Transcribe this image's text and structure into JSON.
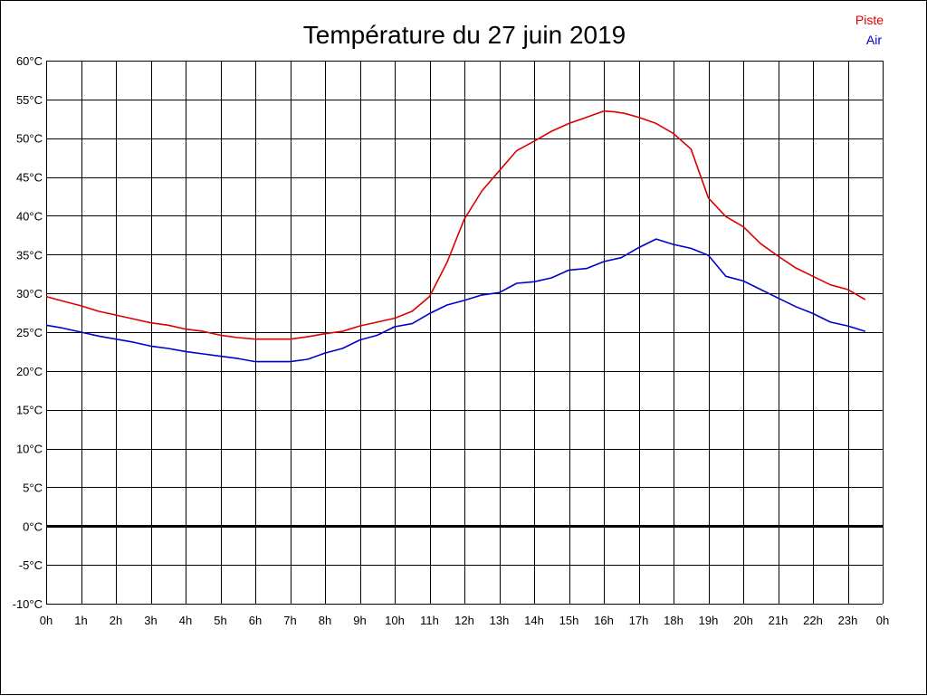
{
  "chart_data": {
    "type": "line",
    "title": "Température du 27 juin 2019",
    "xlabel": "",
    "ylabel": "",
    "x_tick_labels": [
      "0h",
      "1h",
      "2h",
      "3h",
      "4h",
      "5h",
      "6h",
      "7h",
      "8h",
      "9h",
      "10h",
      "11h",
      "12h",
      "13h",
      "14h",
      "15h",
      "16h",
      "17h",
      "18h",
      "19h",
      "20h",
      "21h",
      "22h",
      "23h",
      "0h"
    ],
    "y_tick_labels": [
      "-10°C",
      "-5°C",
      "0°C",
      "5°C",
      "10°C",
      "15°C",
      "20°C",
      "25°C",
      "30°C",
      "35°C",
      "40°C",
      "45°C",
      "50°C",
      "55°C",
      "60°C"
    ],
    "xlim": [
      0,
      24
    ],
    "ylim": [
      -10,
      60
    ],
    "grid": true,
    "legend_position": "top-right",
    "series": [
      {
        "name": "Piste",
        "color": "#dd0000",
        "x": [
          0,
          0.4,
          1,
          1.5,
          2,
          2.5,
          3,
          3.5,
          4,
          4.5,
          5,
          5.5,
          6,
          6.5,
          7,
          7.5,
          8,
          8.5,
          9,
          9.5,
          10,
          10.5,
          11,
          11.5,
          12,
          12.5,
          13,
          13.5,
          14,
          14.5,
          15,
          15.5,
          16,
          16.3,
          16.6,
          17,
          17.5,
          18,
          18.5,
          19,
          19.5,
          20,
          20.5,
          21,
          21.5,
          22,
          22.5,
          23,
          23.5
        ],
        "y": [
          29.6,
          29.1,
          28.4,
          27.7,
          27.2,
          26.7,
          26.2,
          25.9,
          25.4,
          25.1,
          24.6,
          24.3,
          24.1,
          24.1,
          24.1,
          24.4,
          24.8,
          25.1,
          25.8,
          26.3,
          26.8,
          27.7,
          29.6,
          34.0,
          39.6,
          43.2,
          45.8,
          48.4,
          49.6,
          50.9,
          51.9,
          52.7,
          53.5,
          53.4,
          53.2,
          52.7,
          51.9,
          50.6,
          48.6,
          42.3,
          39.9,
          38.6,
          36.4,
          34.8,
          33.3,
          32.2,
          31.1,
          30.5,
          29.2
        ]
      },
      {
        "name": "Air",
        "color": "#0000cc",
        "x": [
          0,
          0.4,
          1,
          1.5,
          2,
          2.5,
          3,
          3.5,
          4,
          4.5,
          5,
          5.5,
          6,
          6.5,
          7,
          7.5,
          8,
          8.5,
          9,
          9.5,
          10,
          10.5,
          11,
          11.5,
          12,
          12.5,
          13,
          13.5,
          14,
          14.5,
          15,
          15.5,
          16,
          16.5,
          17,
          17.5,
          18,
          18.5,
          19,
          19.5,
          20,
          20.5,
          21,
          21.5,
          22,
          22.5,
          23,
          23.5
        ],
        "y": [
          25.9,
          25.6,
          25.0,
          24.5,
          24.1,
          23.7,
          23.2,
          22.9,
          22.5,
          22.2,
          21.9,
          21.6,
          21.2,
          21.2,
          21.2,
          21.5,
          22.3,
          22.9,
          24.0,
          24.6,
          25.7,
          26.1,
          27.4,
          28.5,
          29.1,
          29.8,
          30.1,
          31.3,
          31.5,
          32.0,
          33.0,
          33.2,
          34.1,
          34.6,
          35.9,
          37.0,
          36.3,
          35.8,
          34.9,
          32.2,
          31.6,
          30.5,
          29.4,
          28.3,
          27.4,
          26.3,
          25.8,
          25.1
        ]
      }
    ]
  }
}
